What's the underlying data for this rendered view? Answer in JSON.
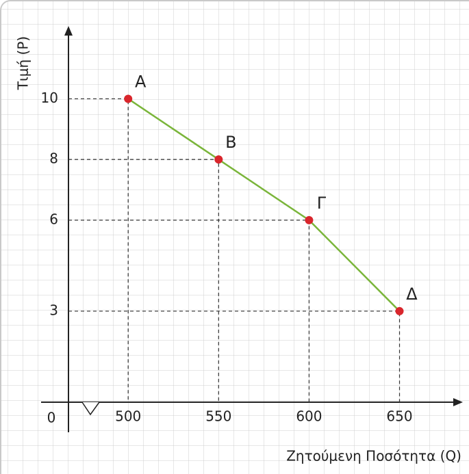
{
  "chart_data": {
    "type": "line",
    "x_label": "Ζητούμενη Ποσότητα (Q)",
    "y_label": "Τιμή (P)",
    "origin_label": "0",
    "x": [
      500,
      550,
      600,
      650
    ],
    "values": [
      10,
      8,
      6,
      3
    ],
    "point_labels": [
      "Α",
      "Β",
      "Γ",
      "Δ"
    ],
    "line_color": "#7ab53a",
    "point_color": "#d9262c",
    "xlim": [
      467,
      685
    ],
    "ylim": [
      0,
      12.4
    ],
    "xticks": [
      500,
      550,
      600,
      650
    ],
    "yticks": [
      3,
      6,
      8,
      10
    ],
    "grid": true
  }
}
